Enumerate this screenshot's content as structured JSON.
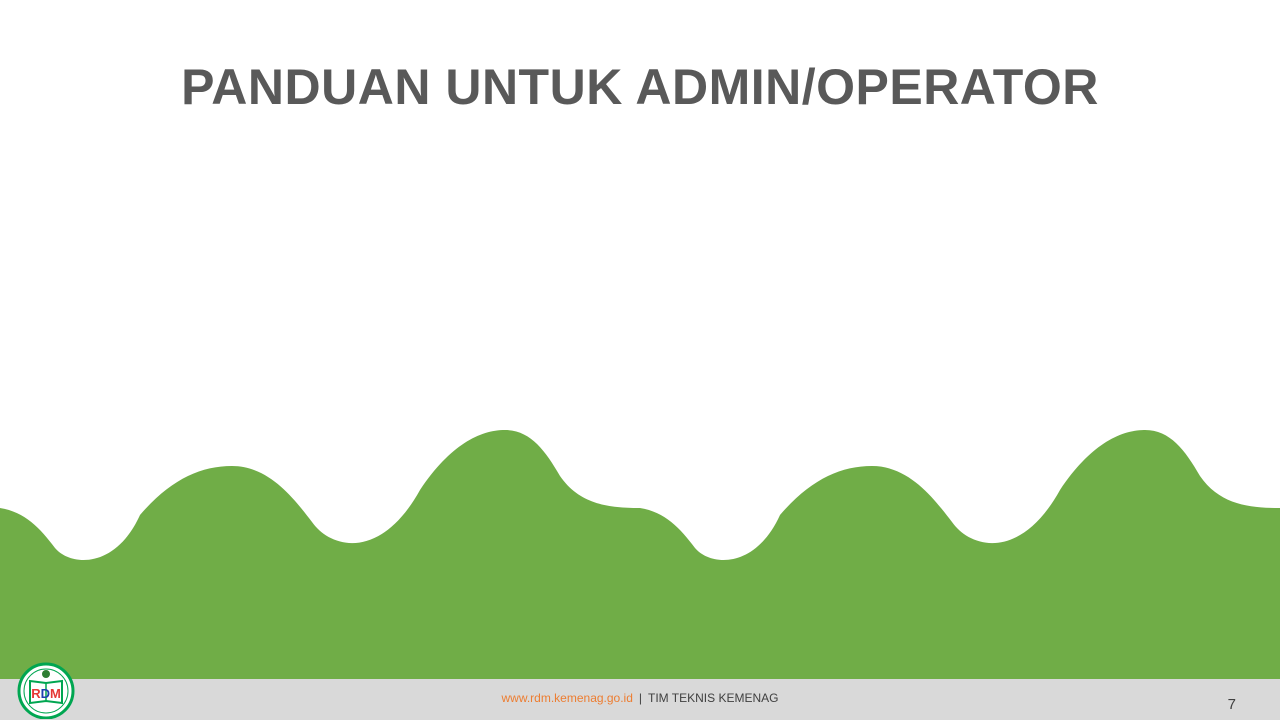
{
  "slide": {
    "title": "PANDUAN UNTUK ADMIN/OPERATOR"
  },
  "footer": {
    "url": "www.rdm.kemenag.go.id",
    "separator": "|",
    "team": "TIM TEKNIS KEMENAG",
    "page_number": "7"
  },
  "logo": {
    "text": "RDM"
  },
  "colors": {
    "title": "#595959",
    "wave_green": "#70ad47",
    "footer_bg": "#d9d9d9",
    "url": "#ed7d31",
    "logo_green": "#00a651"
  }
}
